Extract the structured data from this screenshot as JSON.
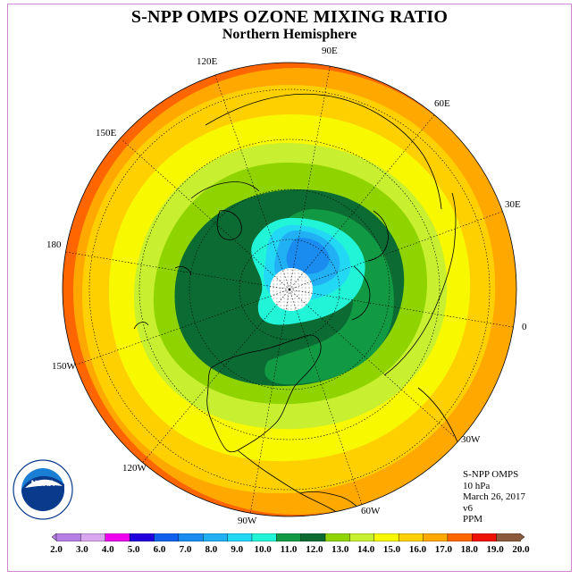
{
  "title": "S-NPP OMPS OZONE MIXING RATIO",
  "subtitle": "Northern Hemisphere",
  "longitude_labels": [
    "90E",
    "60E",
    "30E",
    "0",
    "30W",
    "60W",
    "90W",
    "120W",
    "150W",
    "180",
    "150E",
    "120E"
  ],
  "info": {
    "instrument": "S-NPP OMPS",
    "level": "10 hPa",
    "date": "March 26, 2017",
    "version": "v6",
    "units": "PPM"
  },
  "logo": {
    "text": "NOAA",
    "ring_text": "NATIONAL OCEANIC AND ATMOSPHERIC ADMINISTRATION · U.S. DEPARTMENT OF COMMERCE"
  },
  "colorbar": {
    "labels": [
      "2.0",
      "3.0",
      "4.0",
      "5.0",
      "6.0",
      "7.0",
      "8.0",
      "9.0",
      "10.0",
      "11.0",
      "12.0",
      "13.0",
      "14.0",
      "15.0",
      "16.0",
      "17.0",
      "18.0",
      "19.0",
      "20.0"
    ],
    "colors": [
      "#b57fe6",
      "#d9a6f0",
      "#ee00ee",
      "#2200dd",
      "#1060ee",
      "#1a8cf0",
      "#22b0f4",
      "#22d8f4",
      "#22f4d8",
      "#119944",
      "#0b6b33",
      "#8fd400",
      "#c8f030",
      "#f8f800",
      "#ffd000",
      "#ffa800",
      "#ff6600",
      "#ee1100",
      "#8b5a3c"
    ]
  }
}
